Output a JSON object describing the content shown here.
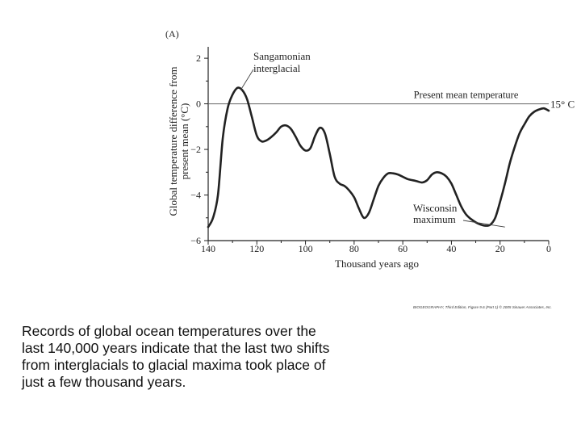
{
  "chart_data": {
    "type": "line",
    "panel_label": "(A)",
    "ylabel_line1": "Global temperature difference from",
    "ylabel_line2": "present mean (°C)",
    "xlabel": "Thousand years ago",
    "xlim": [
      140,
      0
    ],
    "ylim": [
      -6,
      2.5
    ],
    "x_ticks": [
      "140",
      "120",
      "100",
      "80",
      "60",
      "40",
      "20",
      "0"
    ],
    "x_tick_values": [
      140,
      120,
      100,
      80,
      60,
      40,
      20,
      0
    ],
    "y_ticks": [
      "2",
      "0",
      "−2",
      "−4",
      "−6"
    ],
    "y_tick_values": [
      2,
      0,
      -2,
      -4,
      -6
    ],
    "reference_line": {
      "value": 0,
      "label": "Present mean temperature",
      "end_label": "15° C"
    },
    "annotations": [
      {
        "line1": "Sangamonian",
        "line2": "interglacial",
        "x": 128,
        "y": 0.6
      },
      {
        "line1": "Wisconsin",
        "line2": "maximum",
        "x": 18,
        "y": -5.3
      }
    ],
    "series": [
      {
        "name": "Global temperature difference",
        "x": [
          140,
          138,
          136,
          134,
          132,
          130,
          128,
          126,
          124,
          122,
          120,
          118,
          116,
          114,
          112,
          110,
          108,
          106,
          104,
          102,
          100,
          98,
          96,
          94,
          92,
          90,
          88,
          86,
          84,
          82,
          80,
          78,
          76,
          74,
          72,
          70,
          68,
          66,
          64,
          62,
          60,
          58,
          56,
          54,
          52,
          50,
          48,
          46,
          44,
          42,
          40,
          38,
          36,
          34,
          32,
          30,
          28,
          26,
          24,
          22,
          20,
          18,
          16,
          14,
          12,
          10,
          8,
          6,
          4,
          2,
          0
        ],
        "y": [
          -5.4,
          -5.0,
          -4.0,
          -1.5,
          -0.2,
          0.4,
          0.7,
          0.6,
          0.2,
          -0.6,
          -1.4,
          -1.65,
          -1.6,
          -1.45,
          -1.25,
          -1.0,
          -0.95,
          -1.1,
          -1.45,
          -1.85,
          -2.05,
          -1.95,
          -1.4,
          -1.05,
          -1.3,
          -2.2,
          -3.2,
          -3.5,
          -3.6,
          -3.8,
          -4.1,
          -4.6,
          -5.0,
          -4.8,
          -4.2,
          -3.6,
          -3.25,
          -3.05,
          -3.05,
          -3.1,
          -3.2,
          -3.3,
          -3.35,
          -3.4,
          -3.45,
          -3.35,
          -3.1,
          -3.0,
          -3.05,
          -3.2,
          -3.5,
          -4.0,
          -4.5,
          -4.85,
          -5.05,
          -5.2,
          -5.3,
          -5.35,
          -5.3,
          -5.0,
          -4.3,
          -3.5,
          -2.6,
          -1.9,
          -1.3,
          -0.9,
          -0.55,
          -0.35,
          -0.25,
          -0.2,
          -0.3
        ]
      }
    ]
  },
  "credit": "BIOGEOGRAPHY, Third Edition, Figure 9.6 (Part 1)  © 2005 Sinauer Associates, Inc.",
  "caption": "Records of global ocean temperatures over the last 140,000 years indicate that the last two shifts from interglacials to glacial maxima took place of just a few thousand years.",
  "colors": {
    "line": "#222222",
    "reference": "#666666",
    "axis": "#222222"
  }
}
